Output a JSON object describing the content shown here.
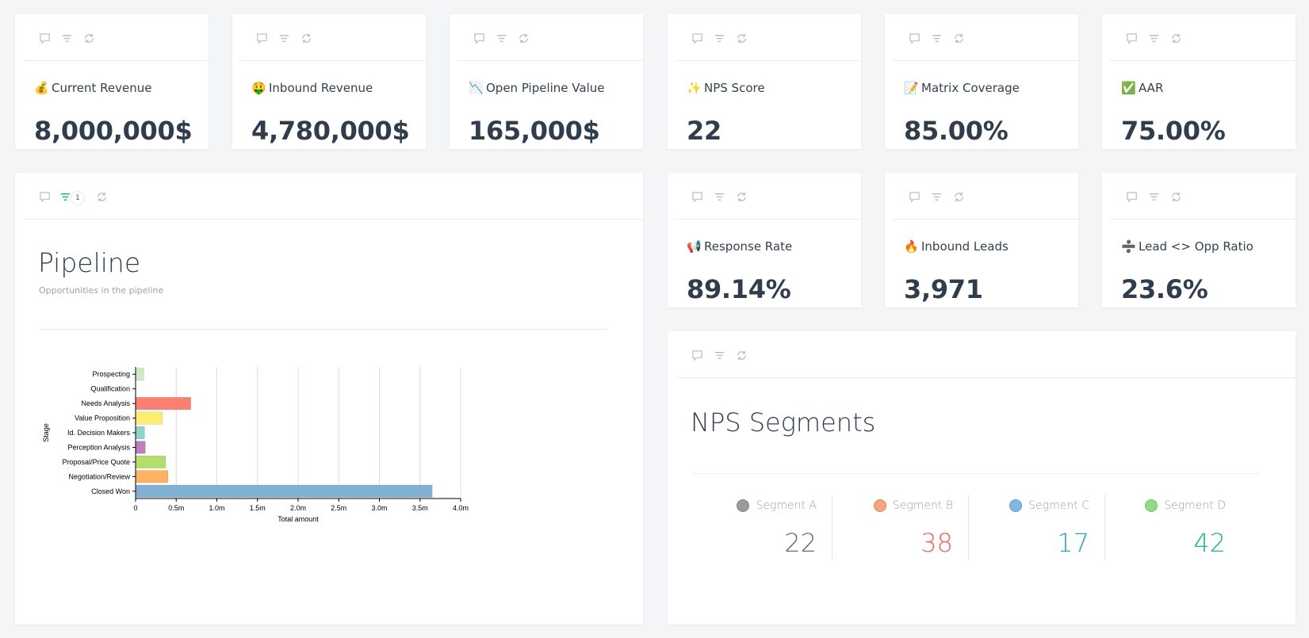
{
  "kpis": [
    {
      "icon": "💰",
      "title": "Current Revenue",
      "value": "8,000,000$"
    },
    {
      "icon": "🤑",
      "title": "Inbound Revenue",
      "value": "4,780,000$"
    },
    {
      "icon": "📉",
      "title": "Open Pipeline Value",
      "value": "165,000$"
    },
    {
      "icon": "✨",
      "title": "NPS Score",
      "value": "22"
    },
    {
      "icon": "📝",
      "title": "Matrix Coverage",
      "value": "85.00%"
    },
    {
      "icon": "✅",
      "title": "AAR",
      "value": "75.00%"
    },
    {
      "icon": "📢",
      "title": "Response Rate",
      "value": "89.14%"
    },
    {
      "icon": "🔥",
      "title": "Inbound Leads",
      "value": "3,971"
    },
    {
      "icon": "➗",
      "title": "Lead <> Opp Ratio",
      "value": "23.6%"
    }
  ],
  "pipeline": {
    "title": "Pipeline",
    "subtitle": "Opportunities in the pipeline",
    "filter_count": "1"
  },
  "chart_data": {
    "type": "bar",
    "orientation": "horizontal",
    "categories": [
      "Prospecting",
      "Qualification",
      "Needs Analysis",
      "Value Proposition",
      "Id. Decision Makers",
      "Perception Analysis",
      "Proposal/Price Quote",
      "Negotiation/Review",
      "Closed Won"
    ],
    "values": [
      0.1,
      0,
      0.68,
      0.33,
      0.11,
      0.12,
      0.37,
      0.4,
      3.65
    ],
    "colors": [
      "#ccebc5",
      "#ffffcc",
      "#fb8072",
      "#ffed6f",
      "#8dd3c7",
      "#bc80bd",
      "#b3de69",
      "#fdb462",
      "#80b1d3"
    ],
    "xlabel": "Total amount",
    "ylabel": "Stage",
    "xlim": [
      0,
      4.0
    ],
    "xticks": [
      "0",
      "0.5m",
      "1.0m",
      "1.5m",
      "2.0m",
      "2.5m",
      "3.0m",
      "3.5m",
      "4.0m"
    ],
    "grid": true
  },
  "nps": {
    "title": "NPS Segments",
    "segments": [
      {
        "label": "Segment A",
        "value": "22",
        "dot": "#9a9a9a",
        "color": "#6b6b6b"
      },
      {
        "label": "Segment B",
        "value": "38",
        "dot": "#f6a57f",
        "color": "#f0605e"
      },
      {
        "label": "Segment C",
        "value": "17",
        "dot": "#7fb6e8",
        "color": "#2a9fc9"
      },
      {
        "label": "Segment D",
        "value": "42",
        "dot": "#8fdc82",
        "color": "#1eb38a"
      }
    ]
  }
}
